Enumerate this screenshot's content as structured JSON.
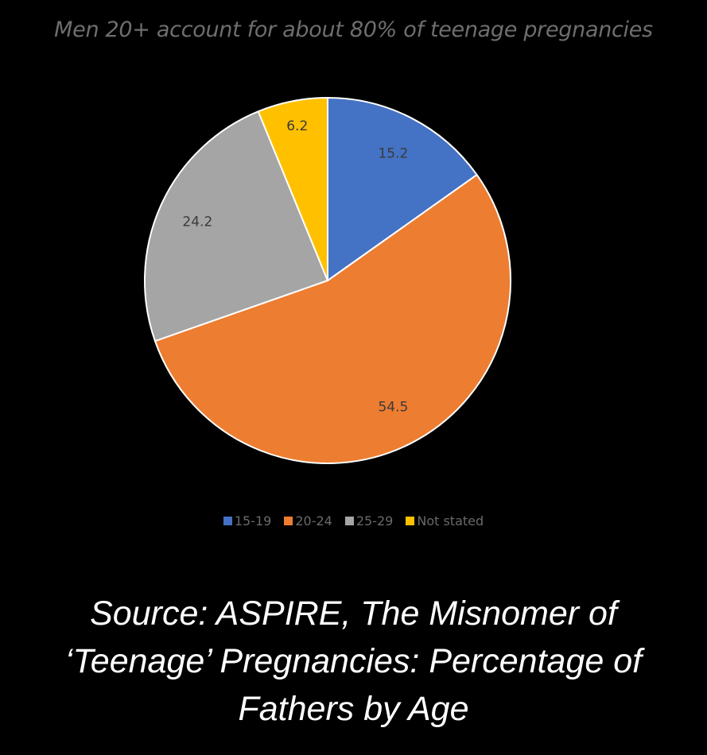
{
  "chart_data": {
    "type": "pie",
    "title": "Men 20+ account for about 80% of teenage pregnancies",
    "categories": [
      "15-19",
      "20-24",
      "25-29",
      "Not stated"
    ],
    "values": [
      15.2,
      54.5,
      24.2,
      6.2
    ],
    "value_labels": [
      "15.2",
      "54.5",
      "24.2",
      "6.2"
    ],
    "colors": [
      "#4472C4",
      "#ED7D31",
      "#A5A5A5",
      "#FFC000"
    ],
    "start_angle_deg": 0,
    "direction": "clockwise",
    "slice_border_color": "#FFFFFF",
    "legend_position": "bottom"
  },
  "source_lines": [
    "Source: ASPIRE, The Misnomer of",
    "‘Teenage’ Pregnancies: Percentage of",
    "Fathers by Age"
  ]
}
